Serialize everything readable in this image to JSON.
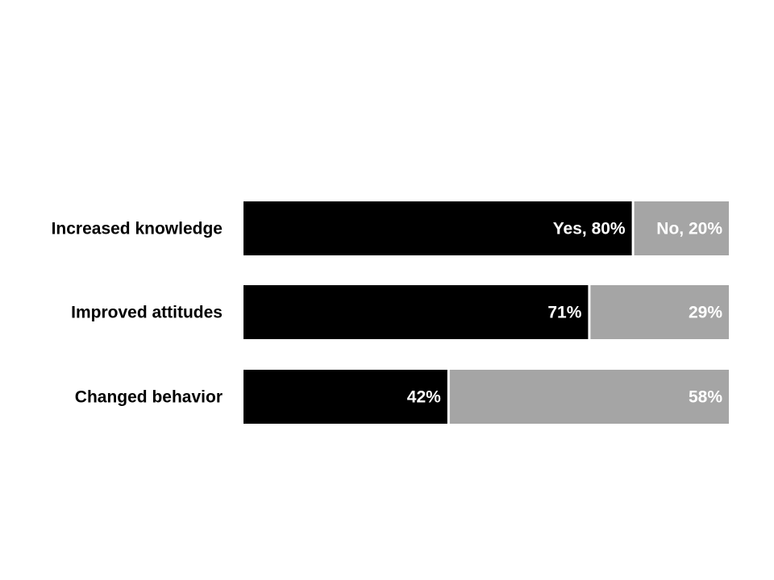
{
  "chart_data": {
    "type": "bar",
    "orientation": "horizontal",
    "stacked": true,
    "categories": [
      "Increased knowledge",
      "Improved attitudes",
      "Changed behavior"
    ],
    "series": [
      {
        "name": "Yes",
        "color": "#000000",
        "values": [
          80,
          71,
          42
        ],
        "labels": [
          "Yes, 80%",
          "71%",
          "42%"
        ]
      },
      {
        "name": "No",
        "color": "#a5a5a5",
        "values": [
          20,
          29,
          58
        ],
        "labels": [
          "No, 20%",
          "29%",
          "58%"
        ]
      }
    ],
    "xlim": [
      0,
      100
    ],
    "grid": false,
    "legend": "none",
    "title": "",
    "xlabel": "",
    "ylabel": ""
  }
}
